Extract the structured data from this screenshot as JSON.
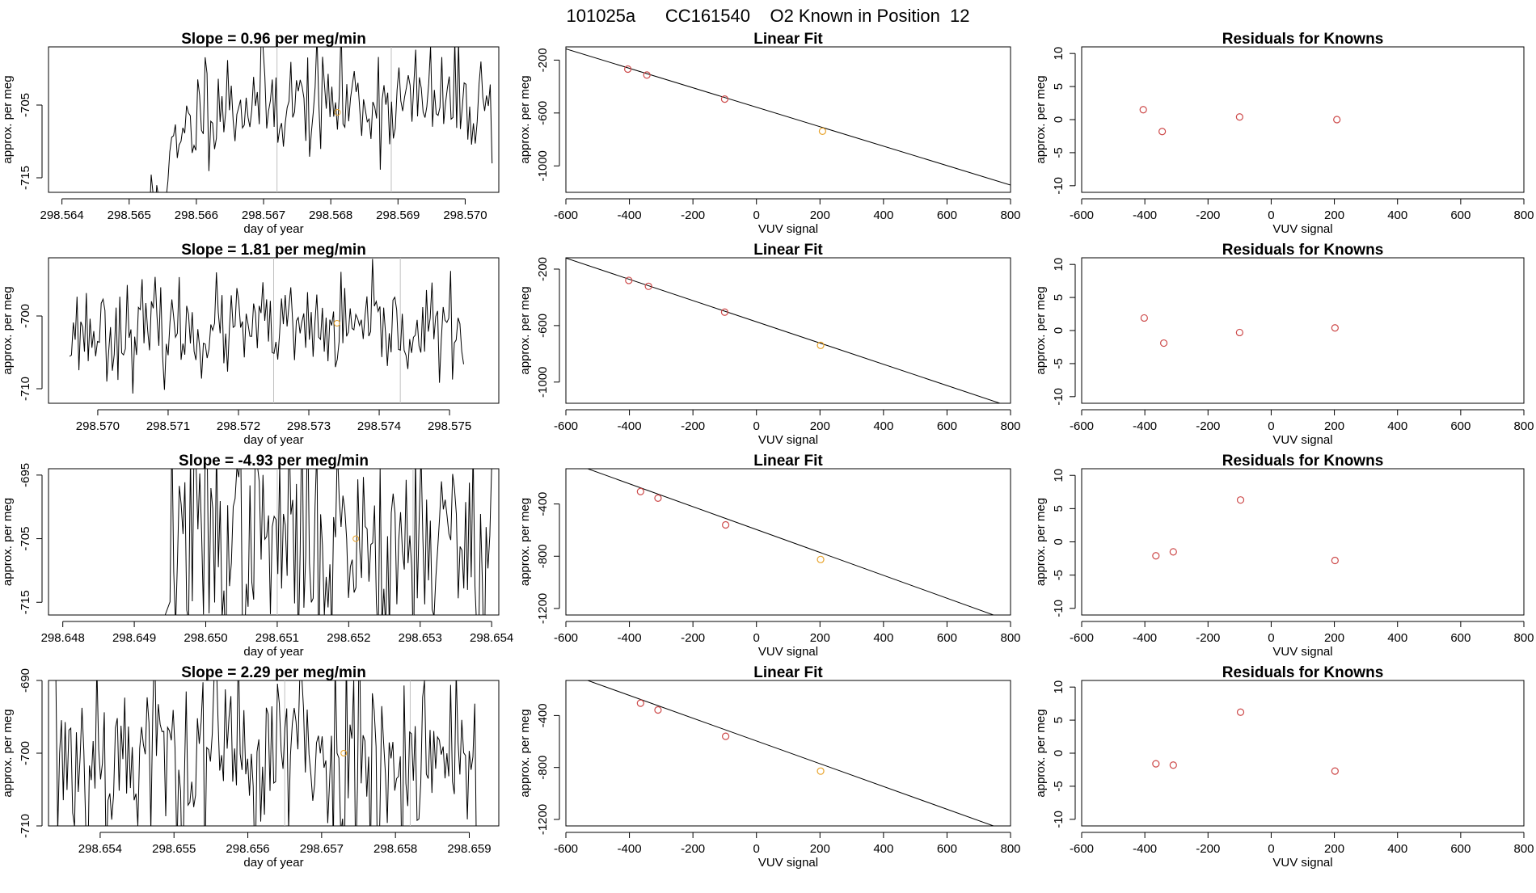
{
  "page_title": "101025a      CC161540    O2 Known in Position  12",
  "colors": {
    "line": "#000000",
    "point_red": "#cd4a4a",
    "point_orange": "#e8a32a",
    "marker_line": "#c0c0c0"
  },
  "chart_data": [
    {
      "type": "line",
      "row": 1,
      "title": "Slope =  0.96  per meg/min",
      "xlabel": "day of year",
      "ylabel": "approx. per meg",
      "xlim": [
        298.5638,
        298.5705
      ],
      "ylim": [
        -717,
        -697
      ],
      "xticks": [
        "298.564",
        "298.565",
        "298.566",
        "298.567",
        "298.568",
        "298.569",
        "298.570"
      ],
      "yticks": [
        "-705",
        "-715"
      ],
      "x_start": 298.5653,
      "x_end": 298.5704,
      "level_mean": -704.5,
      "level_sd": 3.8,
      "ramp_start": 298.5653,
      "ramp_end": 298.5661,
      "ramp_from": -720,
      "seed": 11,
      "marker_lines": [
        298.5672,
        298.5689
      ],
      "highlight_point": {
        "x": 298.5681,
        "y": -706
      }
    },
    {
      "type": "scatter",
      "row": 1,
      "title": "Linear Fit",
      "xlabel": "VUV signal",
      "ylabel": "approx. per meg",
      "xlim": [
        -600,
        800
      ],
      "ylim": [
        -1200,
        -100
      ],
      "xticks": [
        "-600",
        "-400",
        "-200",
        "0",
        "200",
        "400",
        "600",
        "800"
      ],
      "yticks": [
        "-200",
        "-600",
        "-1000"
      ],
      "points": [
        {
          "x": -405,
          "y": -268
        },
        {
          "x": -345,
          "y": -313
        },
        {
          "x": -100,
          "y": -495
        },
        {
          "x": 208,
          "y": -738,
          "orange": true
        }
      ],
      "fit_line": [
        [
          -600,
          -115
        ],
        [
          800,
          -1145
        ]
      ]
    },
    {
      "type": "scatter",
      "row": 1,
      "title": "Residuals for Knowns",
      "xlabel": "VUV signal",
      "ylabel": "approx. per meg",
      "xlim": [
        -600,
        800
      ],
      "ylim": [
        -11,
        11
      ],
      "xticks": [
        "-600",
        "-400",
        "-200",
        "0",
        "200",
        "400",
        "600",
        "800"
      ],
      "yticks": [
        "10",
        "5",
        "0",
        "-5",
        "-10"
      ],
      "points": [
        {
          "x": -405,
          "y": 1.5
        },
        {
          "x": -345,
          "y": -1.8
        },
        {
          "x": -100,
          "y": 0.4
        },
        {
          "x": 208,
          "y": 0.0
        }
      ]
    },
    {
      "type": "line",
      "row": 2,
      "title": "Slope =  1.81  per meg/min",
      "xlabel": "day of year",
      "ylabel": "approx. per meg",
      "xlim": [
        298.5693,
        298.5757
      ],
      "ylim": [
        -712,
        -692
      ],
      "xticks": [
        "298.570",
        "298.571",
        "298.572",
        "298.573",
        "298.574",
        "298.575"
      ],
      "yticks": [
        "-700",
        "-710"
      ],
      "x_start": 298.5696,
      "x_end": 298.5752,
      "level_mean": -702,
      "level_sd": 3.2,
      "seed": 23,
      "marker_lines": [
        298.5725,
        298.5743
      ],
      "highlight_point": {
        "x": 298.5734,
        "y": -701
      }
    },
    {
      "type": "scatter",
      "row": 2,
      "title": "Linear Fit",
      "xlabel": "VUV signal",
      "ylabel": "approx. per meg",
      "xlim": [
        -600,
        800
      ],
      "ylim": [
        -1150,
        -120
      ],
      "xticks": [
        "-600",
        "-400",
        "-200",
        "0",
        "200",
        "400",
        "600",
        "800"
      ],
      "yticks": [
        "-200",
        "-600",
        "-1000"
      ],
      "points": [
        {
          "x": -402,
          "y": -280
        },
        {
          "x": -340,
          "y": -322
        },
        {
          "x": -100,
          "y": -505
        },
        {
          "x": 202,
          "y": -740,
          "orange": true
        }
      ],
      "fit_line": [
        [
          -600,
          -122
        ],
        [
          800,
          -1175
        ]
      ]
    },
    {
      "type": "scatter",
      "row": 2,
      "title": "Residuals for Knowns",
      "xlabel": "VUV signal",
      "ylabel": "approx. per meg",
      "xlim": [
        -600,
        800
      ],
      "ylim": [
        -11,
        11
      ],
      "xticks": [
        "-600",
        "-400",
        "-200",
        "0",
        "200",
        "400",
        "600",
        "800"
      ],
      "yticks": [
        "10",
        "5",
        "0",
        "-5",
        "-10"
      ],
      "points": [
        {
          "x": -402,
          "y": 1.9
        },
        {
          "x": -340,
          "y": -1.9
        },
        {
          "x": -100,
          "y": -0.3
        },
        {
          "x": 202,
          "y": 0.4
        }
      ]
    },
    {
      "type": "line",
      "row": 3,
      "title": "Slope =  -4.93  per meg/min",
      "xlabel": "day of year",
      "ylabel": "approx. per meg",
      "xlim": [
        298.6478,
        298.6541
      ],
      "ylim": [
        -717,
        -694
      ],
      "xticks": [
        "298.648",
        "298.649",
        "298.650",
        "298.651",
        "298.652",
        "298.653",
        "298.654"
      ],
      "yticks": [
        "-695",
        "-705",
        "-715"
      ],
      "x_start": 298.6495,
      "x_end": 298.654,
      "level_mean": -705,
      "level_sd": 9,
      "flat_from": 298.6488,
      "flat_level": -717,
      "seed": 37,
      "marker_lines": [
        298.651,
        298.6529
      ],
      "highlight_point": {
        "x": 298.6521,
        "y": -705
      }
    },
    {
      "type": "scatter",
      "row": 3,
      "title": "Linear Fit",
      "xlabel": "VUV signal",
      "ylabel": "approx. per meg",
      "xlim": [
        -600,
        800
      ],
      "ylim": [
        -1250,
        -130
      ],
      "xticks": [
        "-600",
        "-400",
        "-200",
        "0",
        "200",
        "400",
        "600",
        "800"
      ],
      "yticks": [
        "-400",
        "-800",
        "-1200"
      ],
      "points": [
        {
          "x": -365,
          "y": -305
        },
        {
          "x": -310,
          "y": -355
        },
        {
          "x": -97,
          "y": -560
        },
        {
          "x": 202,
          "y": -825,
          "orange": true
        }
      ],
      "fit_line": [
        [
          -600,
          -70
        ],
        [
          800,
          -1297
        ]
      ]
    },
    {
      "type": "scatter",
      "row": 3,
      "title": "Residuals for Knowns",
      "xlabel": "VUV signal",
      "ylabel": "approx. per meg",
      "xlim": [
        -600,
        800
      ],
      "ylim": [
        -11,
        11
      ],
      "xticks": [
        "-600",
        "-400",
        "-200",
        "0",
        "200",
        "400",
        "600",
        "800"
      ],
      "yticks": [
        "10",
        "5",
        "0",
        "-5",
        "-10"
      ],
      "points": [
        {
          "x": -365,
          "y": -2.1
        },
        {
          "x": -310,
          "y": -1.5
        },
        {
          "x": -97,
          "y": 6.3
        },
        {
          "x": 202,
          "y": -2.8
        }
      ]
    },
    {
      "type": "line",
      "row": 4,
      "title": "Slope =  2.29  per meg/min",
      "xlabel": "day of year",
      "ylabel": "approx. per meg",
      "xlim": [
        298.6533,
        298.6594
      ],
      "ylim": [
        -710,
        -690
      ],
      "xticks": [
        "298.654",
        "298.655",
        "298.656",
        "298.657",
        "298.658",
        "298.659"
      ],
      "yticks": [
        "-690",
        "-700",
        "-710"
      ],
      "x_start": 298.6534,
      "x_end": 298.6591,
      "level_mean": -700,
      "level_sd": 7.5,
      "seed": 53,
      "marker_lines": [
        298.6565,
        298.6582
      ],
      "highlight_point": {
        "x": 298.6573,
        "y": -700
      }
    },
    {
      "type": "scatter",
      "row": 4,
      "title": "Linear Fit",
      "xlabel": "VUV signal",
      "ylabel": "approx. per meg",
      "xlim": [
        -600,
        800
      ],
      "ylim": [
        -1250,
        -130
      ],
      "xticks": [
        "-600",
        "-400",
        "-200",
        "0",
        "200",
        "400",
        "600",
        "800"
      ],
      "yticks": [
        "-400",
        "-800",
        "-1200"
      ],
      "points": [
        {
          "x": -365,
          "y": -305
        },
        {
          "x": -310,
          "y": -357
        },
        {
          "x": -97,
          "y": -560
        },
        {
          "x": 202,
          "y": -828,
          "orange": true
        }
      ],
      "fit_line": [
        [
          -600,
          -70
        ],
        [
          800,
          -1297
        ]
      ]
    },
    {
      "type": "scatter",
      "row": 4,
      "title": "Residuals for Knowns",
      "xlabel": "VUV signal",
      "ylabel": "approx. per meg",
      "xlim": [
        -600,
        800
      ],
      "ylim": [
        -11,
        11
      ],
      "xticks": [
        "-600",
        "-400",
        "-200",
        "0",
        "200",
        "400",
        "600",
        "800"
      ],
      "yticks": [
        "10",
        "5",
        "0",
        "-5",
        "-10"
      ],
      "points": [
        {
          "x": -365,
          "y": -1.6
        },
        {
          "x": -310,
          "y": -1.8
        },
        {
          "x": -97,
          "y": 6.2
        },
        {
          "x": 202,
          "y": -2.7
        }
      ]
    }
  ]
}
